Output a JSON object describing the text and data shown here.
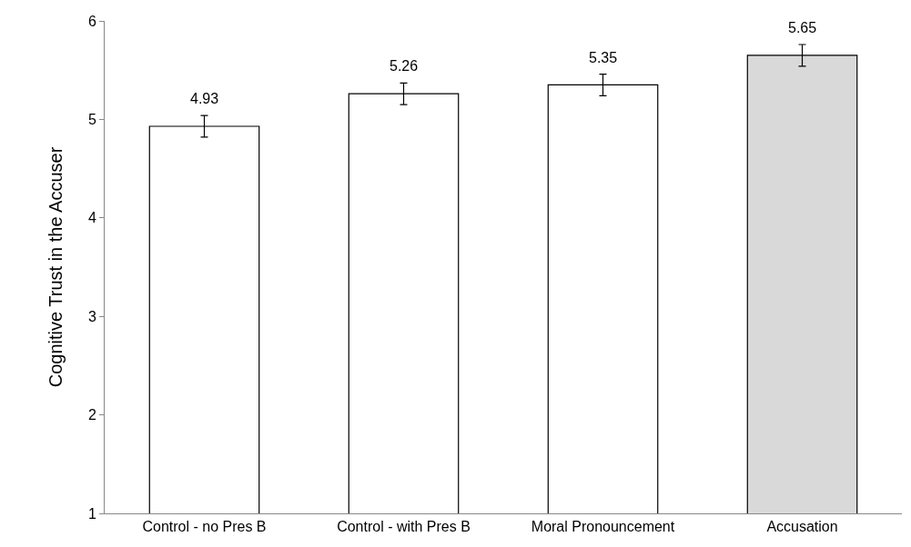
{
  "chart_data": {
    "type": "bar",
    "ylabel": "Cognitive Trust in the Accuser",
    "categories": [
      "Control - no Pres B",
      "Control - with Pres B",
      "Moral Pronouncement",
      "Accusation"
    ],
    "values": [
      4.93,
      5.26,
      5.35,
      5.65
    ],
    "colors": [
      "#ffffff",
      "#ffffff",
      "#ffffff",
      "#d9d9d9"
    ],
    "errors": [
      0.11,
      0.11,
      0.11,
      0.11
    ],
    "data_labels": true,
    "ylim": [
      1,
      6
    ],
    "yticks": [
      1,
      2,
      3,
      4,
      5,
      6
    ],
    "grid": false
  }
}
